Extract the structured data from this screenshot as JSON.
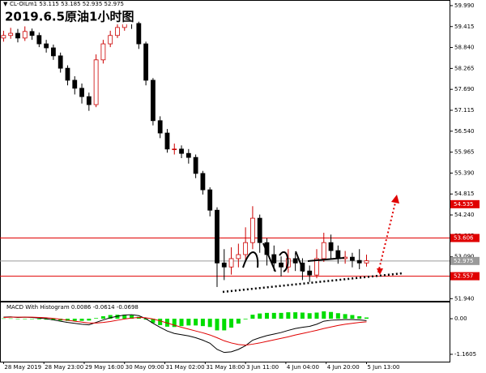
{
  "chart_data": [
    {
      "type": "candlestick",
      "title": "2019.6.5原油1小时图",
      "header": "CL-OILm1 53.115 53.185 52.935 52.975",
      "x": [
        0,
        3,
        6,
        9,
        12,
        15,
        18,
        21,
        24,
        27,
        30,
        33,
        36,
        39,
        42,
        45,
        48,
        51,
        54,
        57,
        60,
        63,
        66,
        69,
        72,
        75,
        78,
        81,
        84,
        87,
        90,
        93,
        96,
        99,
        102,
        105,
        108,
        111,
        114,
        117,
        120,
        123,
        126,
        129,
        132,
        135,
        138,
        141,
        144,
        147,
        150,
        153
      ],
      "open": [
        59.1,
        59.17,
        59.23,
        59.1,
        59.28,
        59.17,
        58.94,
        58.83,
        58.61,
        58.27,
        57.94,
        57.72,
        57.49,
        57.27,
        58.5,
        58.94,
        59.17,
        59.39,
        59.61,
        59.5,
        58.94,
        57.94,
        56.83,
        56.49,
        56.05,
        56.05,
        55.93,
        55.82,
        55.38,
        54.93,
        54.37,
        52.92,
        52.81,
        53.04,
        53.15,
        53.48,
        54.15,
        53.48,
        53.15,
        52.92,
        52.81,
        53.04,
        52.92,
        52.7,
        52.59,
        53.04,
        53.48,
        53.26,
        53.04,
        53.08,
        52.99,
        52.92
      ],
      "high": [
        59.3,
        59.38,
        59.35,
        59.42,
        59.36,
        59.25,
        59.05,
        58.92,
        58.7,
        58.35,
        58.05,
        57.85,
        57.6,
        58.65,
        59.05,
        59.3,
        59.55,
        59.75,
        59.7,
        59.55,
        59.0,
        58.0,
        56.95,
        56.6,
        56.2,
        56.15,
        56.05,
        55.9,
        55.45,
        55.0,
        54.45,
        53.3,
        53.35,
        53.45,
        53.9,
        54.48,
        54.25,
        53.6,
        53.4,
        53.1,
        53.3,
        53.2,
        53.05,
        52.85,
        53.3,
        53.75,
        53.7,
        53.4,
        53.25,
        53.2,
        53.3,
        53.15
      ],
      "low": [
        59.0,
        59.08,
        58.98,
        59.02,
        59.05,
        58.85,
        58.7,
        58.5,
        58.15,
        57.8,
        57.55,
        57.3,
        57.1,
        57.2,
        58.4,
        58.85,
        59.1,
        59.3,
        59.35,
        58.8,
        57.8,
        56.7,
        56.35,
        55.95,
        55.9,
        55.8,
        55.65,
        55.25,
        54.8,
        54.2,
        52.26,
        52.45,
        52.6,
        52.8,
        53.0,
        53.3,
        53.2,
        52.85,
        52.7,
        52.55,
        52.65,
        52.7,
        52.45,
        52.4,
        52.5,
        52.95,
        53.05,
        52.9,
        52.9,
        52.8,
        52.75,
        52.82
      ],
      "close": [
        59.17,
        59.23,
        59.1,
        59.28,
        59.17,
        58.94,
        58.83,
        58.61,
        58.27,
        57.94,
        57.72,
        57.49,
        57.27,
        58.5,
        58.94,
        59.17,
        59.39,
        59.61,
        59.5,
        58.94,
        57.94,
        56.83,
        56.49,
        56.05,
        56.05,
        55.93,
        55.82,
        55.38,
        54.93,
        54.37,
        52.92,
        52.81,
        53.04,
        53.15,
        53.48,
        54.15,
        53.48,
        53.15,
        52.92,
        52.81,
        53.04,
        52.92,
        52.7,
        52.59,
        53.04,
        53.48,
        53.26,
        53.04,
        53.08,
        52.99,
        52.92,
        52.98
      ],
      "up_color": "#cc0000",
      "down_color": "#000000",
      "xlim": [
        -1.5,
        188
      ],
      "ylim": [
        51.88,
        60.1
      ],
      "yticks": [
        {
          "value": 59.99,
          "label": "59.990"
        },
        {
          "value": 59.415,
          "label": "59.415"
        },
        {
          "value": 58.84,
          "label": "58.840"
        },
        {
          "value": 58.265,
          "label": "58.265"
        },
        {
          "value": 57.69,
          "label": "57.690"
        },
        {
          "value": 57.115,
          "label": "57.115"
        },
        {
          "value": 56.54,
          "label": "56.540"
        },
        {
          "value": 55.965,
          "label": "55.965"
        },
        {
          "value": 55.39,
          "label": "55.390"
        },
        {
          "value": 54.815,
          "label": "54.815"
        },
        {
          "value": 54.24,
          "label": "54.240"
        },
        {
          "value": 53.665,
          "label": "53.665"
        },
        {
          "value": 53.09,
          "label": "53.090"
        },
        {
          "value": 52.515,
          "label": "52.515"
        },
        {
          "value": 51.94,
          "label": "51.940"
        }
      ],
      "levels": [
        {
          "value": 54.535,
          "color": "#e00000",
          "line": false
        },
        {
          "value": 53.606,
          "color": "#e00000",
          "line": true
        },
        {
          "value": 52.557,
          "color": "#e00000",
          "line": true
        },
        {
          "value": 52.975,
          "color": "#9a9a9a",
          "line": true
        }
      ]
    },
    {
      "type": "macd",
      "label": "MACD With Histogram 0.0086 -0.0614 -0.0698",
      "x": [
        0,
        3,
        6,
        9,
        12,
        15,
        18,
        21,
        24,
        27,
        30,
        33,
        36,
        39,
        42,
        45,
        48,
        51,
        54,
        57,
        60,
        63,
        66,
        69,
        72,
        75,
        78,
        81,
        84,
        87,
        90,
        93,
        96,
        99,
        102,
        105,
        108,
        111,
        114,
        117,
        120,
        123,
        126,
        129,
        132,
        135,
        138,
        141,
        144,
        147,
        150,
        153
      ],
      "series": [
        {
          "name": "Histogram",
          "color": "#00dd00",
          "values": [
            0.01,
            0.01,
            -0.01,
            0,
            -0.01,
            -0.02,
            -0.03,
            -0.05,
            -0.06,
            -0.07,
            -0.07,
            -0.07,
            -0.06,
            0.02,
            0.08,
            0.12,
            0.13,
            0.13,
            0.11,
            0.06,
            -0.03,
            -0.14,
            -0.21,
            -0.26,
            -0.27,
            -0.24,
            -0.22,
            -0.22,
            -0.24,
            -0.27,
            -0.38,
            -0.38,
            -0.29,
            -0.16,
            -0.02,
            0.13,
            0.17,
            0.19,
            0.19,
            0.19,
            0.21,
            0.21,
            0.2,
            0.18,
            0.2,
            0.24,
            0.22,
            0.18,
            0.15,
            0.12,
            0.08,
            0.04
          ]
        },
        {
          "name": "MACD",
          "color": "#000000",
          "values": [
            0.05,
            0.06,
            0.04,
            0.05,
            0.04,
            0.02,
            0.0,
            -0.04,
            -0.08,
            -0.12,
            -0.15,
            -0.18,
            -0.2,
            -0.12,
            -0.04,
            0.03,
            0.08,
            0.12,
            0.13,
            0.1,
            0.0,
            -0.15,
            -0.28,
            -0.4,
            -0.48,
            -0.52,
            -0.56,
            -0.62,
            -0.7,
            -0.8,
            -1.0,
            -1.1,
            -1.08,
            -1.0,
            -0.88,
            -0.7,
            -0.62,
            -0.55,
            -0.5,
            -0.45,
            -0.38,
            -0.32,
            -0.28,
            -0.25,
            -0.18,
            -0.08,
            -0.05,
            -0.04,
            -0.03,
            -0.03,
            -0.04,
            -0.06
          ]
        },
        {
          "name": "Signal",
          "color": "#e00000",
          "values": [
            0.04,
            0.05,
            0.05,
            0.05,
            0.05,
            0.04,
            0.03,
            0.01,
            -0.02,
            -0.05,
            -0.08,
            -0.11,
            -0.14,
            -0.14,
            -0.12,
            -0.09,
            -0.05,
            -0.01,
            0.02,
            0.04,
            0.03,
            -0.01,
            -0.07,
            -0.14,
            -0.21,
            -0.28,
            -0.34,
            -0.4,
            -0.46,
            -0.53,
            -0.62,
            -0.72,
            -0.79,
            -0.84,
            -0.86,
            -0.83,
            -0.79,
            -0.74,
            -0.69,
            -0.64,
            -0.59,
            -0.53,
            -0.48,
            -0.43,
            -0.38,
            -0.32,
            -0.27,
            -0.22,
            -0.18,
            -0.15,
            -0.12,
            -0.1
          ]
        }
      ],
      "xlim": [
        -1.5,
        188
      ],
      "ylim": [
        -1.4,
        0.53
      ],
      "yticks": [
        {
          "value": 0,
          "label": "0.00"
        },
        -1.1605
      ],
      "xticks": [
        {
          "value": 0,
          "label": "28 May 2019"
        },
        {
          "value": 17,
          "label": "28 May 23:00"
        },
        {
          "value": 34,
          "label": "29 May 16:00"
        },
        {
          "value": 51,
          "label": "30 May 09:00"
        },
        {
          "value": 68,
          "label": "31 May 02:00"
        },
        {
          "value": 85,
          "label": "31 May 18:00"
        },
        {
          "value": 102,
          "label": "3 Jun 11:00"
        },
        {
          "value": 119,
          "label": "4 Jun 04:00"
        },
        {
          "value": 136,
          "label": "4 Jun 20:00"
        },
        {
          "value": 153,
          "label": "5 Jun 13:00"
        }
      ]
    }
  ]
}
